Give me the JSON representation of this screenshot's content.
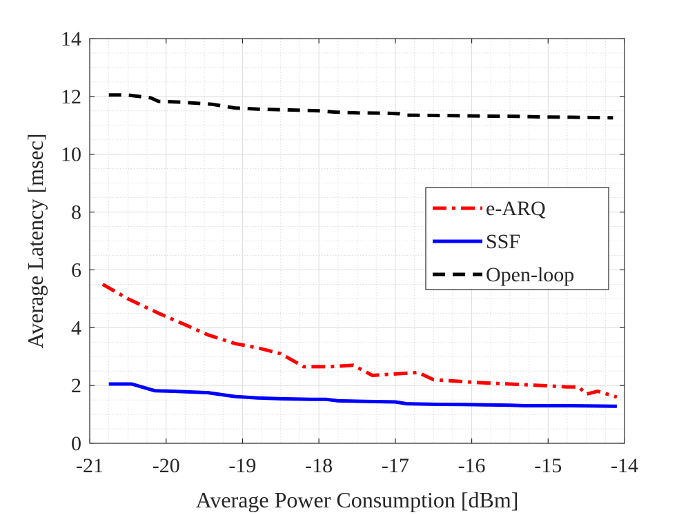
{
  "chart_data": {
    "type": "line",
    "title": "",
    "xlabel": "Average Power Consumption [dBm]",
    "ylabel": "Average Latency [msec]",
    "xlim": [
      -21,
      -14
    ],
    "ylim": [
      0,
      14
    ],
    "x_ticks": [
      -21,
      -20,
      -19,
      -18,
      -17,
      -16,
      -15,
      -14
    ],
    "x_tick_labels": [
      "-21",
      "-20",
      "-19",
      "-18",
      "-17",
      "-16",
      "-15",
      "-14"
    ],
    "y_ticks": [
      0,
      2,
      4,
      6,
      8,
      10,
      12,
      14
    ],
    "y_tick_labels": [
      "0",
      "2",
      "4",
      "6",
      "8",
      "10",
      "12",
      "14"
    ],
    "grid": true,
    "minor_grid": true,
    "legend_position": "center-right",
    "series": [
      {
        "name": "e-ARQ",
        "color": "#ff0000",
        "style": "dashdot",
        "x": [
          -20.83,
          -20.5,
          -20.1,
          -19.75,
          -19.45,
          -19.1,
          -18.8,
          -18.5,
          -18.2,
          -18.0,
          -17.85,
          -17.55,
          -17.3,
          -17.0,
          -16.7,
          -16.5,
          -16.2,
          -15.9,
          -15.5,
          -15.1,
          -14.75,
          -14.6,
          -14.5,
          -14.35,
          -14.1
        ],
        "y": [
          5.5,
          5.0,
          4.5,
          4.1,
          3.75,
          3.45,
          3.3,
          3.1,
          2.65,
          2.65,
          2.65,
          2.7,
          2.35,
          2.4,
          2.45,
          2.2,
          2.15,
          2.1,
          2.05,
          2.0,
          1.95,
          1.95,
          1.7,
          1.8,
          1.6
        ]
      },
      {
        "name": "SSF",
        "color": "#0000ff",
        "style": "solid",
        "x": [
          -20.75,
          -20.45,
          -20.15,
          -19.9,
          -19.45,
          -19.1,
          -18.8,
          -18.5,
          -18.1,
          -17.9,
          -17.75,
          -17.4,
          -17.0,
          -16.85,
          -16.5,
          -16.1,
          -15.8,
          -15.5,
          -15.3,
          -15.0,
          -14.7,
          -14.4,
          -14.1
        ],
        "y": [
          2.05,
          2.05,
          1.82,
          1.8,
          1.75,
          1.62,
          1.57,
          1.54,
          1.52,
          1.52,
          1.47,
          1.45,
          1.43,
          1.37,
          1.35,
          1.34,
          1.33,
          1.32,
          1.3,
          1.3,
          1.3,
          1.29,
          1.28
        ]
      },
      {
        "name": "Open-loop",
        "color": "#000000",
        "style": "dashed",
        "x": [
          -20.75,
          -20.5,
          -20.2,
          -20.1,
          -19.8,
          -19.4,
          -19.1,
          -18.8,
          -18.5,
          -18.2,
          -18.0,
          -17.8,
          -17.5,
          -17.1,
          -16.95,
          -16.85,
          -16.5,
          -16.1,
          -15.8,
          -15.4,
          -15.1,
          -14.7,
          -14.4,
          -14.15
        ],
        "y": [
          12.05,
          12.05,
          11.95,
          11.83,
          11.8,
          11.73,
          11.6,
          11.56,
          11.54,
          11.52,
          11.5,
          11.46,
          11.43,
          11.42,
          11.4,
          11.35,
          11.34,
          11.33,
          11.32,
          11.31,
          11.29,
          11.28,
          11.27,
          11.26
        ]
      }
    ]
  }
}
